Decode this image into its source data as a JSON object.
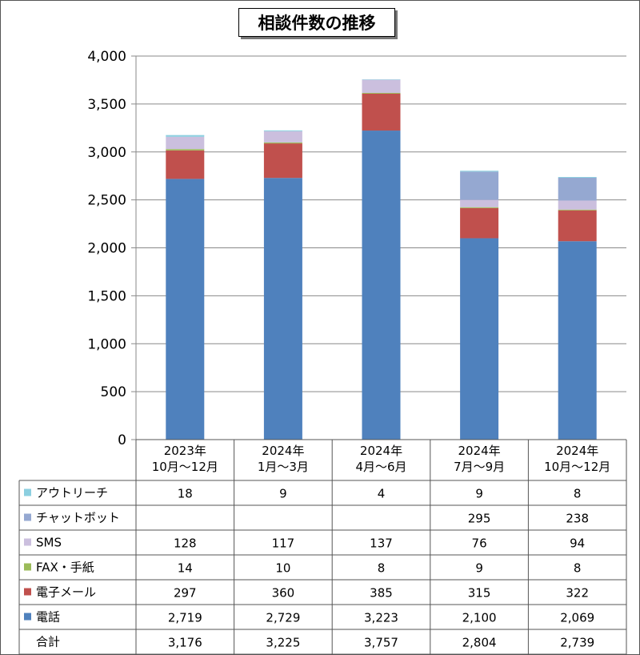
{
  "chart_data": {
    "type": "bar",
    "stacked": true,
    "title": "相談件数の推移",
    "categories": [
      [
        "2023年",
        "10月～12月"
      ],
      [
        "2024年",
        "1月～3月"
      ],
      [
        "2024年",
        "4月～6月"
      ],
      [
        "2024年",
        "7月～9月"
      ],
      [
        "2024年",
        "10月～12月"
      ]
    ],
    "ylim": [
      0,
      4000
    ],
    "yticks": [
      "0",
      "500",
      "1,000",
      "1,500",
      "2,000",
      "2,500",
      "3,000",
      "3,500",
      "4,000"
    ],
    "grid": true,
    "series": [
      {
        "name": "電話",
        "color": "#4F81BD",
        "values": [
          2719,
          2729,
          3223,
          2100,
          2069
        ],
        "labels": [
          "2,719",
          "2,729",
          "3,223",
          "2,100",
          "2,069"
        ]
      },
      {
        "name": "電子メール",
        "color": "#C0504D",
        "values": [
          297,
          360,
          385,
          315,
          322
        ],
        "labels": [
          "297",
          "360",
          "385",
          "315",
          "322"
        ]
      },
      {
        "name": "FAX・手紙",
        "color": "#9BBB59",
        "values": [
          14,
          10,
          8,
          9,
          8
        ],
        "labels": [
          "14",
          "10",
          "8",
          "9",
          "8"
        ]
      },
      {
        "name": "SMS",
        "color": "#CBBFDE",
        "values": [
          128,
          117,
          137,
          76,
          94
        ],
        "labels": [
          "128",
          "117",
          "137",
          "76",
          "94"
        ]
      },
      {
        "name": "チャットボット",
        "color": "#95A8D1",
        "values": [
          null,
          null,
          null,
          295,
          238
        ],
        "labels": [
          "",
          "",
          "",
          "295",
          "238"
        ]
      },
      {
        "name": "アウトリーチ",
        "color": "#8CCFE0",
        "values": [
          18,
          9,
          4,
          9,
          8
        ],
        "labels": [
          "18",
          "9",
          "4",
          "9",
          "8"
        ]
      }
    ],
    "total": {
      "name": "合計",
      "labels": [
        "3,176",
        "3,225",
        "3,757",
        "2,804",
        "2,739"
      ]
    }
  }
}
